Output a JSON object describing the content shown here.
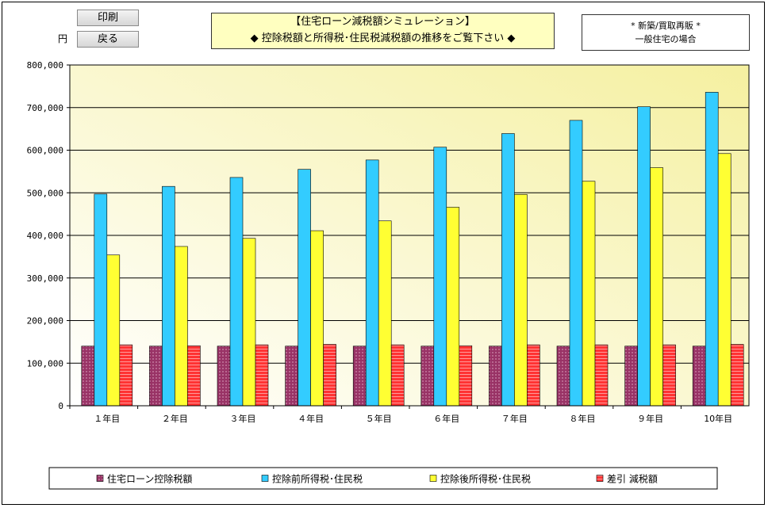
{
  "buttons": {
    "print_label": "印刷",
    "back_label": "戻る"
  },
  "unit_label": "円",
  "title": {
    "line1": "【住宅ローン減税額シミュレーション】",
    "line2": "◆ 控除税額と所得税･住民税減税額の推移をご覧下さい ◆"
  },
  "note": {
    "line1": "* 新築/買取再販 *",
    "line2": "一般住宅の場合"
  },
  "colors": {
    "plot_bg_light": "#ffffff",
    "plot_bg_dark": "#f5f0a0",
    "loan_deduction": "#993366",
    "before_tax": "#33ccff",
    "after_tax": "#ffff33",
    "difference": "#ff3333"
  },
  "chart_data": {
    "type": "bar",
    "categories": [
      "１年目",
      "２年目",
      "３年目",
      "４年目",
      "５年目",
      "６年目",
      "７年目",
      "８年目",
      "９年目",
      "10年目"
    ],
    "ylim": [
      0,
      800000
    ],
    "yticks": [
      "0",
      "100,000",
      "200,000",
      "300,000",
      "400,000",
      "500,000",
      "600,000",
      "700,000",
      "800,000"
    ],
    "grid": true,
    "legend_position": "bottom",
    "series": [
      {
        "name": "住宅ローン控除税額",
        "color": "#993366",
        "values": [
          140000,
          140000,
          140000,
          140000,
          140000,
          140000,
          140000,
          140000,
          140000,
          140000
        ]
      },
      {
        "name": "控除前所得税･住民税",
        "color": "#33ccff",
        "values": [
          497000,
          515000,
          536000,
          555000,
          577000,
          607000,
          639000,
          670000,
          702000,
          736000
        ]
      },
      {
        "name": "控除後所得税･住民税",
        "color": "#ffff33",
        "values": [
          354000,
          374000,
          393000,
          411000,
          434000,
          466000,
          496000,
          527000,
          559000,
          592000
        ]
      },
      {
        "name": "差引 減税額",
        "color": "#ff3333",
        "values": [
          143000,
          141000,
          143000,
          144000,
          143000,
          141000,
          143000,
          143000,
          143000,
          144000
        ]
      }
    ]
  }
}
